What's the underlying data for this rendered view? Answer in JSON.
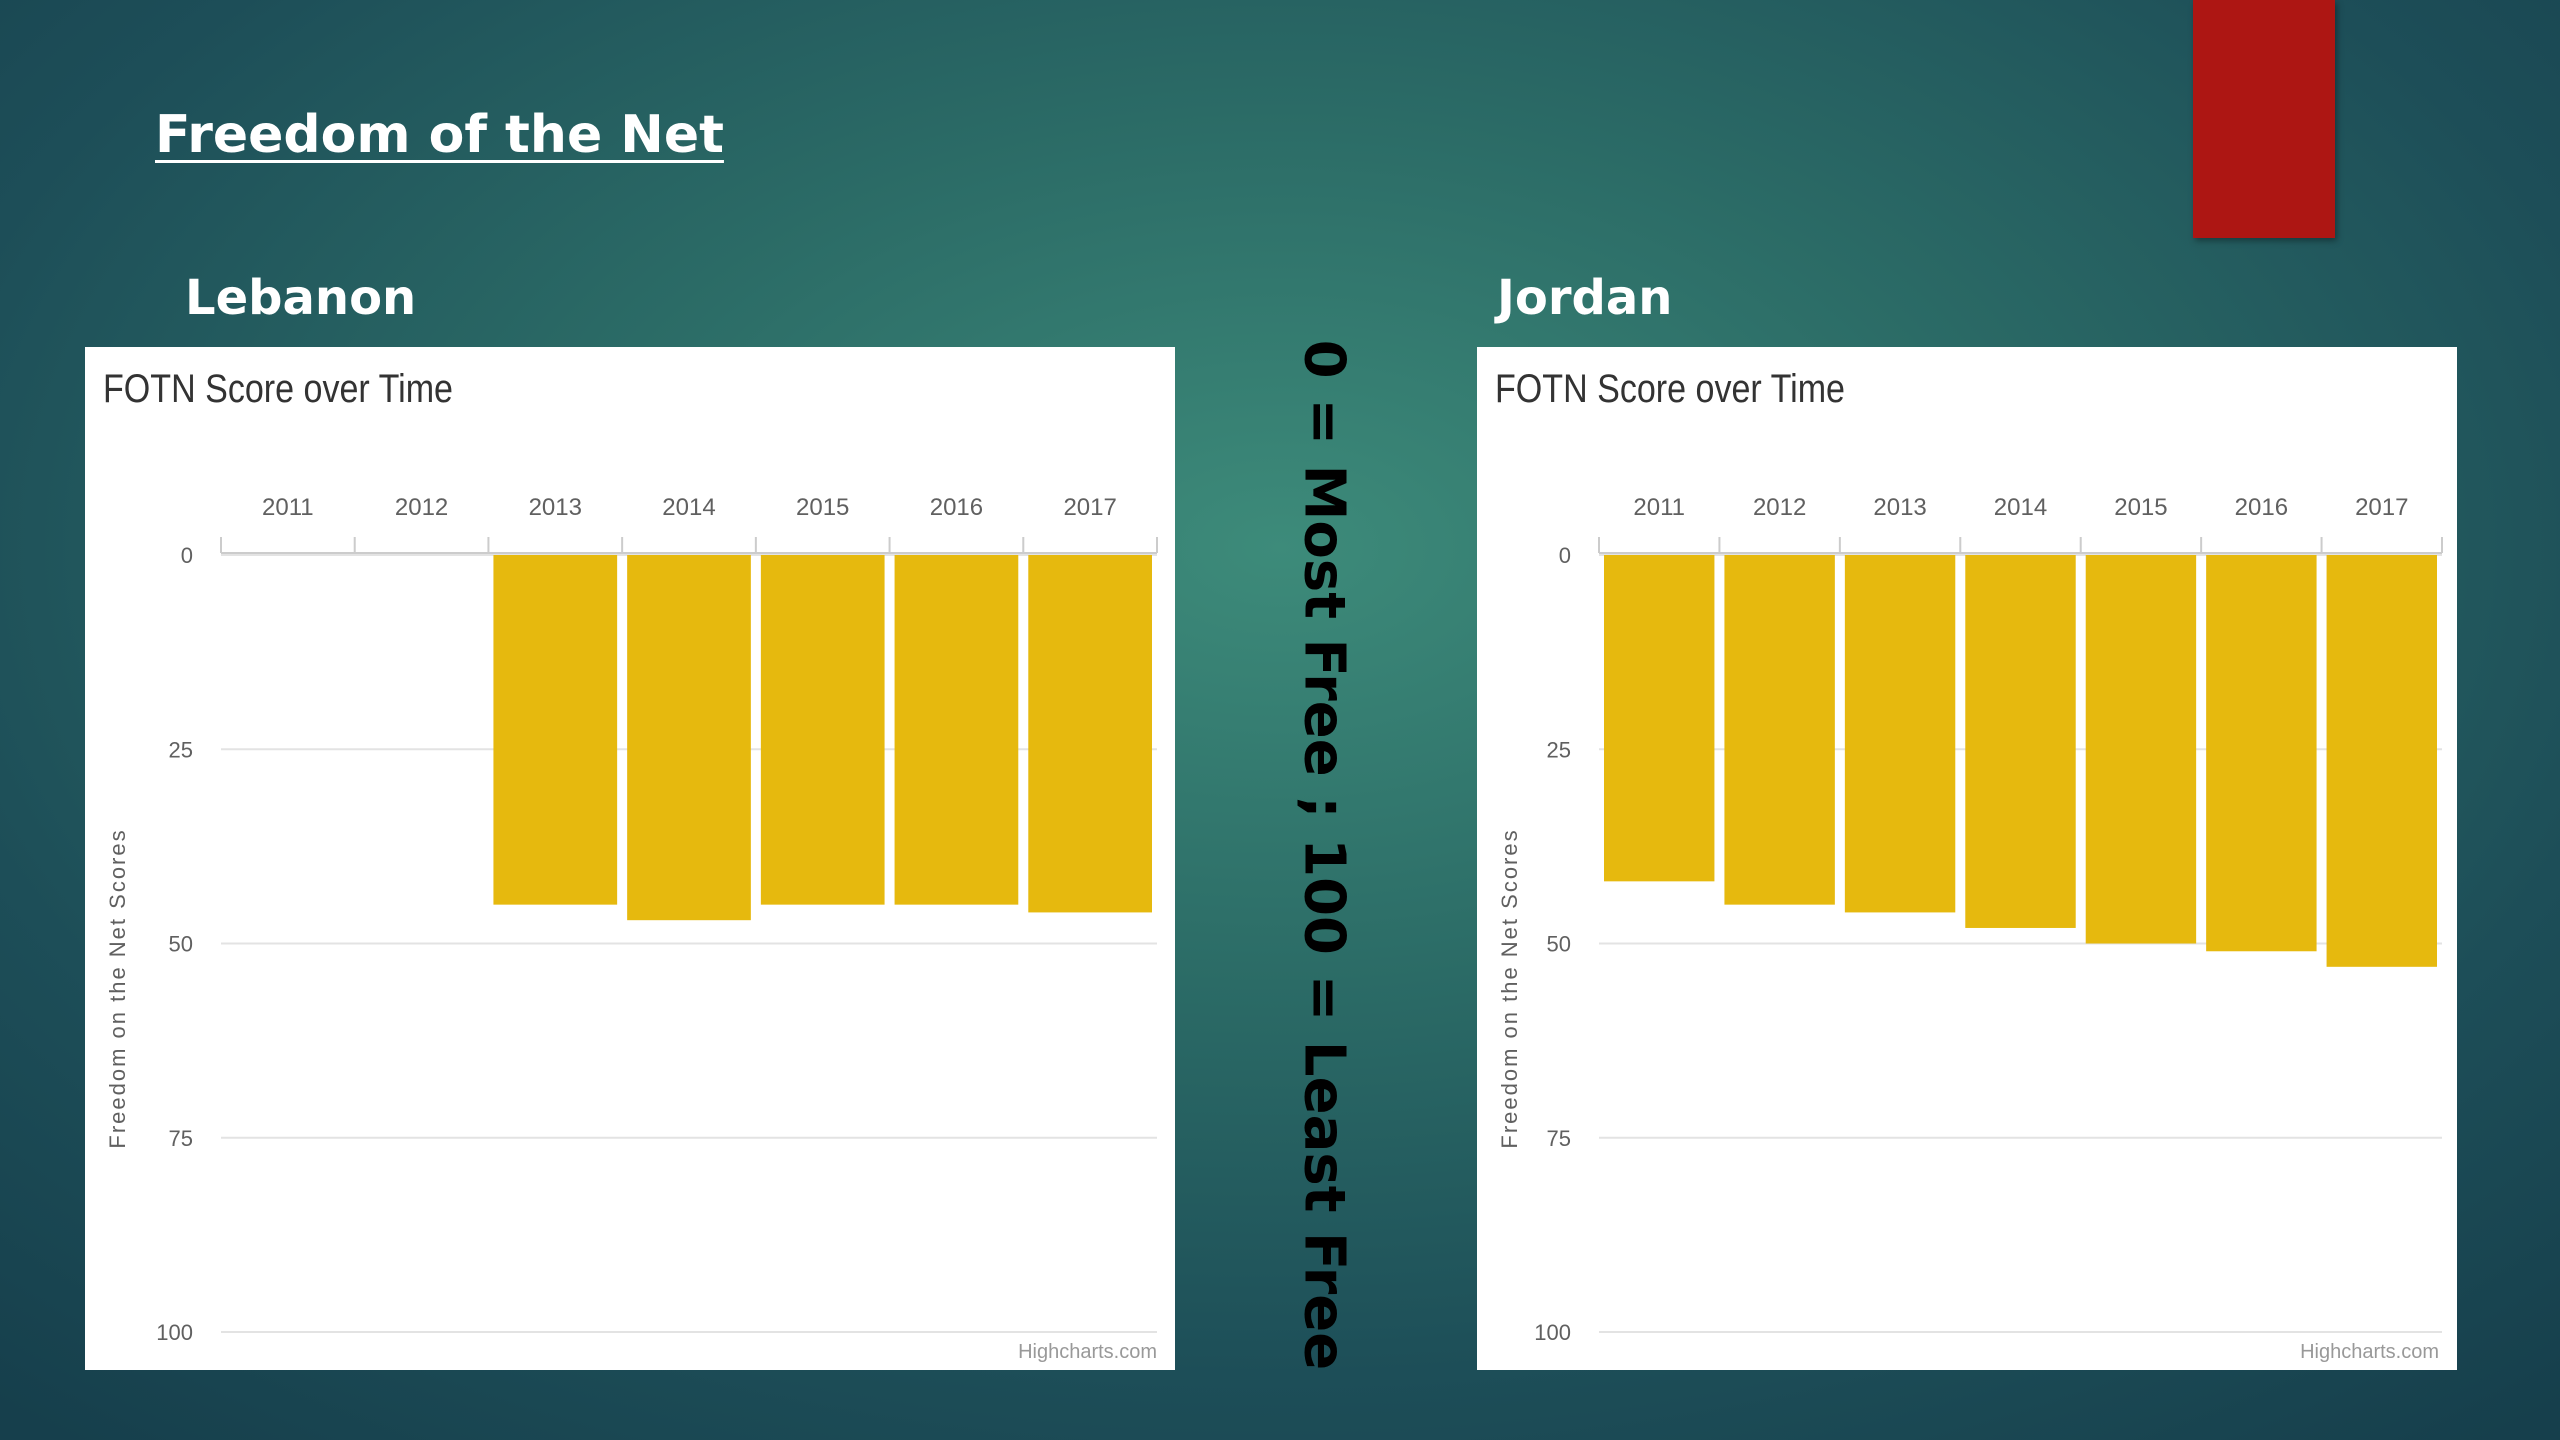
{
  "slide": {
    "title": "Freedom of the Net",
    "note": "0 = Most Free ; 100 = Least Free",
    "accent_color": "#ad1613"
  },
  "chart_data": [
    {
      "country": "Lebanon",
      "type": "bar",
      "title": "FOTN Score over Time",
      "categories": [
        "2011",
        "2012",
        "2013",
        "2014",
        "2015",
        "2016",
        "2017"
      ],
      "values": [
        null,
        null,
        45,
        47,
        45,
        45,
        46
      ],
      "ylabel": "Freedom on the Net Scores",
      "ylim": [
        0,
        100
      ],
      "y_reversed": true,
      "y_ticks": [
        0,
        25,
        50,
        75,
        100
      ],
      "x_axis_position": "top",
      "bar_color": "#e6b90e",
      "grid": true,
      "credit": "Highcharts.com"
    },
    {
      "country": "Jordan",
      "type": "bar",
      "title": "FOTN Score over Time",
      "categories": [
        "2011",
        "2012",
        "2013",
        "2014",
        "2015",
        "2016",
        "2017"
      ],
      "values": [
        42,
        45,
        46,
        48,
        50,
        51,
        53
      ],
      "ylabel": "Freedom on the Net Scores",
      "ylim": [
        0,
        100
      ],
      "y_reversed": true,
      "y_ticks": [
        0,
        25,
        50,
        75,
        100
      ],
      "x_axis_position": "top",
      "bar_color": "#e6b90e",
      "grid": true,
      "credit": "Highcharts.com"
    }
  ]
}
